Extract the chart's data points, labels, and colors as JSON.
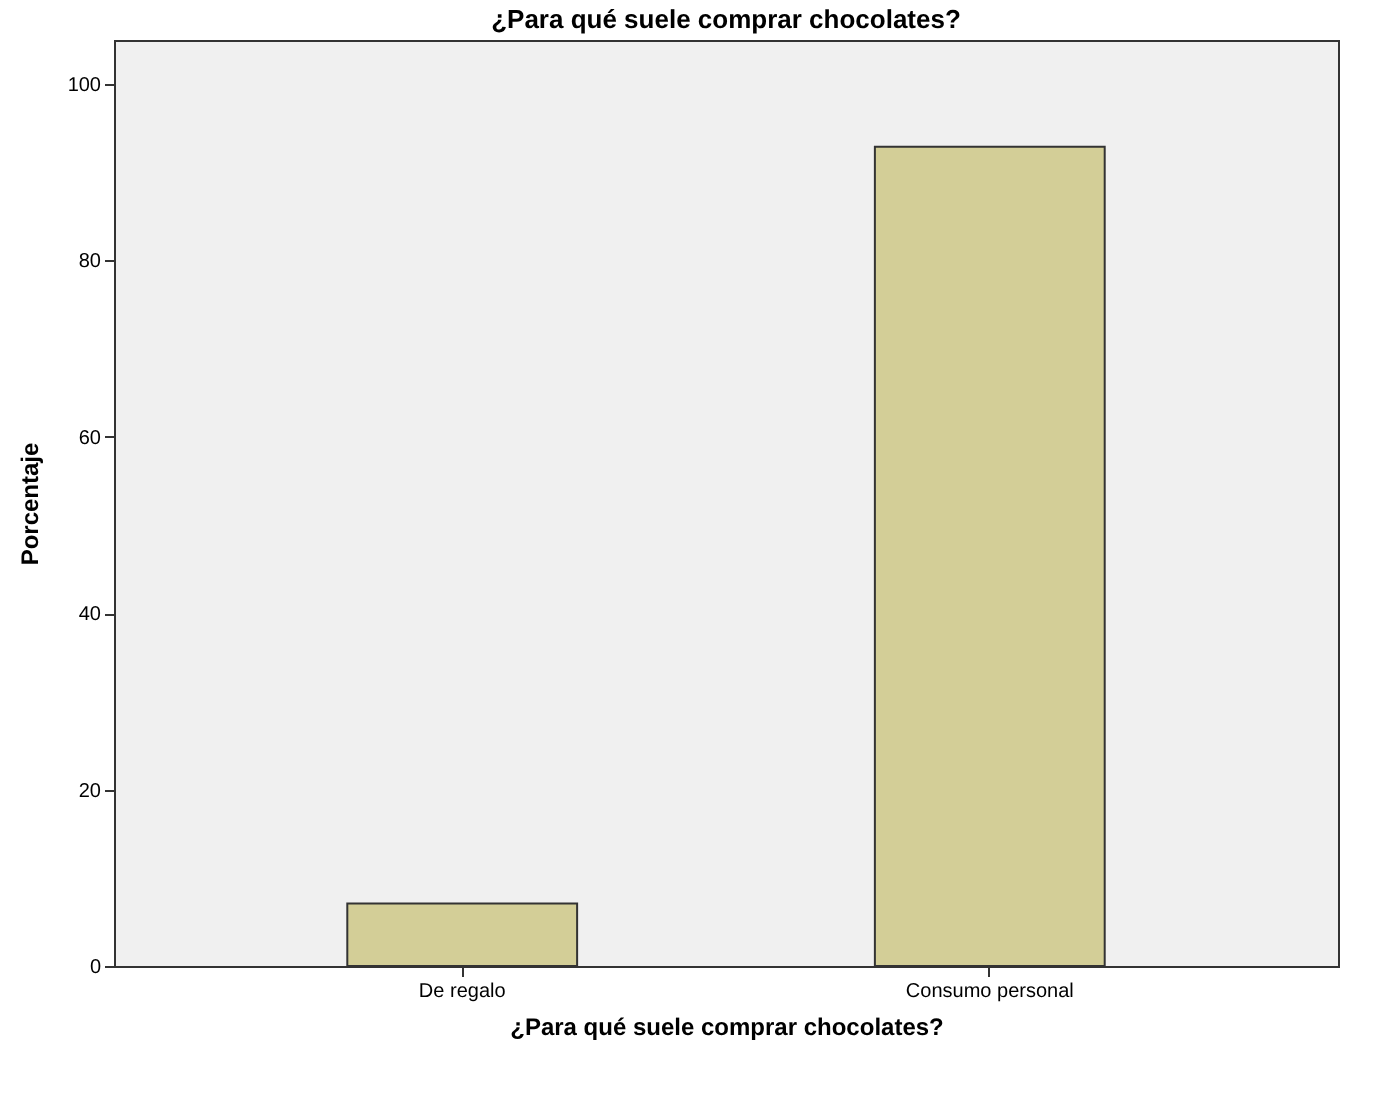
{
  "chart_data": {
    "type": "bar",
    "title": "¿Para qué suele comprar chocolates?",
    "xlabel": "¿Para qué suele comprar chocolates?",
    "ylabel": "Porcentaje",
    "categories": [
      "De regalo",
      "Consumo personal"
    ],
    "values": [
      7.1,
      92.9
    ],
    "color": "#d3ce97",
    "ylim": [
      0,
      105
    ],
    "yticks": [
      0,
      20,
      40,
      60,
      80,
      100
    ],
    "grid": false
  }
}
